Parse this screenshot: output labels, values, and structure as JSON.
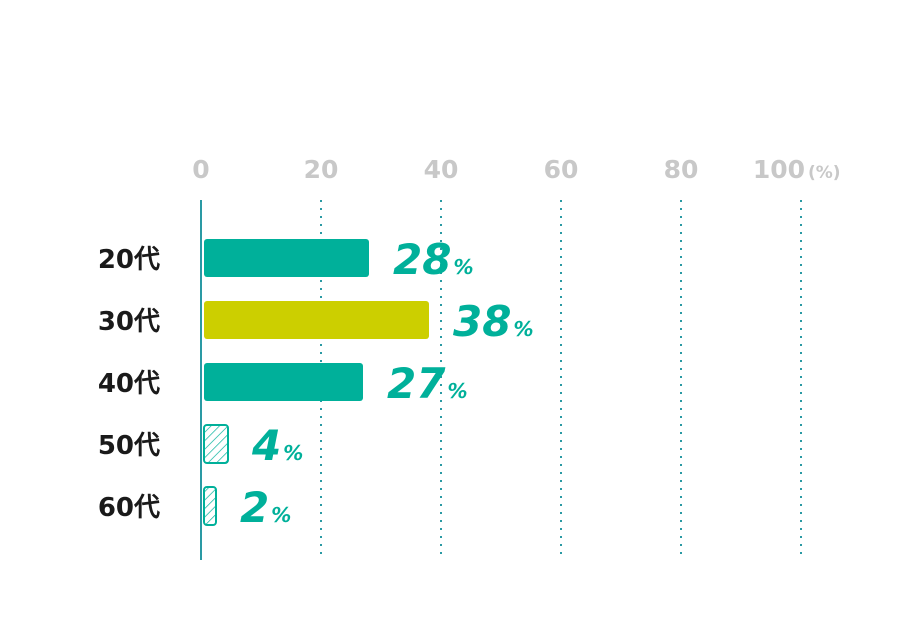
{
  "chart_data": {
    "type": "bar",
    "orientation": "horizontal",
    "categories": [
      "20代",
      "30代",
      "40代",
      "50代",
      "60代"
    ],
    "values": [
      28,
      38,
      27,
      4,
      2
    ],
    "value_suffix": "%",
    "xlim": [
      0,
      100
    ],
    "x_ticks": [
      "0",
      "20",
      "40",
      "60",
      "80",
      "100"
    ],
    "x_unit": "(%)",
    "grid": "vertical-dotted",
    "colors": {
      "primary": "#00b09a",
      "highlight": "#cccf00",
      "axis": "#2a9aa4",
      "grid": "#2a9aa4",
      "tick": "#c8c8c8",
      "category": "#1a1a1a"
    },
    "highlight_index": 1,
    "hatched_indices": [
      3,
      4
    ]
  }
}
